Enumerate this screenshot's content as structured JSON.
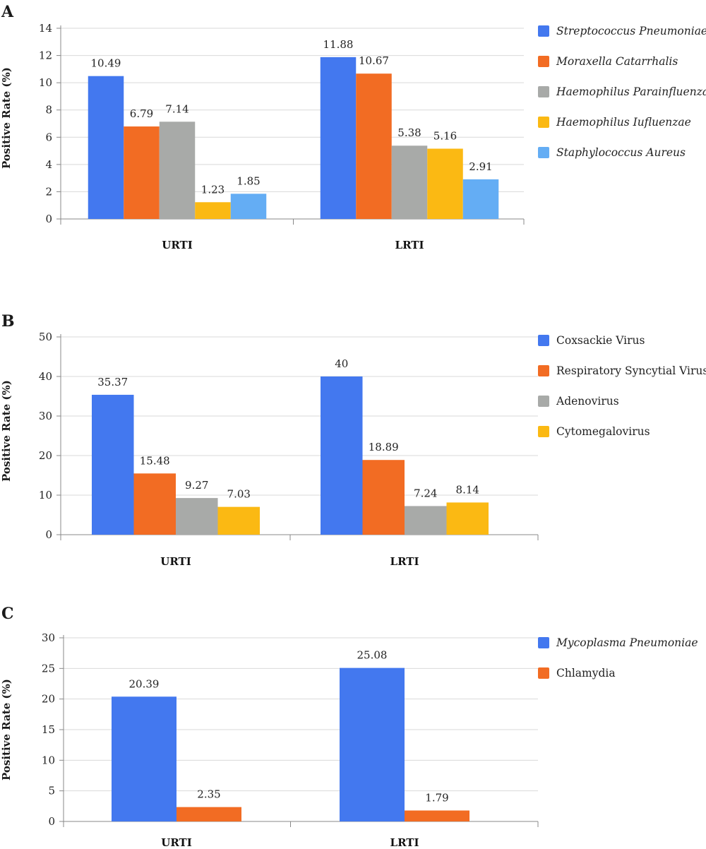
{
  "chart_data": [
    {
      "type": "bar",
      "panel_label": "A",
      "categories": [
        "URTI",
        "LRTI"
      ],
      "ylabel": "Positive Rate (%)",
      "ylim": [
        0,
        14
      ],
      "yticks": [
        0,
        2,
        4,
        6,
        8,
        10,
        12,
        14
      ],
      "grid": true,
      "legend_placement": "right",
      "legend_italic": true,
      "series": [
        {
          "name": "Streptococcus Pneumoniae",
          "color": "#4378ef",
          "values": [
            10.49,
            11.88
          ],
          "labels": [
            "10.49",
            "11.88"
          ]
        },
        {
          "name": "Moraxella Catarrhalis",
          "color": "#f26c23",
          "values": [
            6.79,
            10.67
          ],
          "labels": [
            "6.79",
            "10.67"
          ]
        },
        {
          "name": "Haemophilus Parainfluenzae",
          "color": "#a8aaa8",
          "values": [
            7.14,
            5.38
          ],
          "labels": [
            "7.14",
            "5.38"
          ]
        },
        {
          "name": "Haemophilus Iufluenzae",
          "color": "#fbb913",
          "values": [
            1.23,
            5.16
          ],
          "labels": [
            "1.23",
            "5.16"
          ]
        },
        {
          "name": "Staphylococcus Aureus",
          "color": "#64adf4",
          "values": [
            1.85,
            2.91
          ],
          "labels": [
            "1.85",
            "2.91"
          ]
        }
      ]
    },
    {
      "type": "bar",
      "panel_label": "B",
      "categories": [
        "URTI",
        "LRTI"
      ],
      "ylabel": "Positive Rate (%)",
      "ylim": [
        0,
        50
      ],
      "yticks": [
        0,
        10,
        20,
        30,
        40,
        50
      ],
      "grid": true,
      "legend_placement": "right",
      "legend_italic": false,
      "series": [
        {
          "name": "Coxsackie Virus",
          "color": "#4378ef",
          "values": [
            35.37,
            40
          ],
          "labels": [
            "35.37",
            "40"
          ]
        },
        {
          "name": "Respiratory Syncytial Virus",
          "color": "#f26c23",
          "values": [
            15.48,
            18.89
          ],
          "labels": [
            "15.48",
            "18.89"
          ]
        },
        {
          "name": "Adenovirus",
          "color": "#a8aaa8",
          "values": [
            9.27,
            7.24
          ],
          "labels": [
            "9.27",
            "7.24"
          ]
        },
        {
          "name": "Cytomegalovirus",
          "color": "#fbb913",
          "values": [
            7.03,
            8.14
          ],
          "labels": [
            "7.03",
            "8.14"
          ]
        }
      ]
    },
    {
      "type": "bar",
      "panel_label": "C",
      "categories": [
        "URTI",
        "LRTI"
      ],
      "ylabel": "Positive Rate (%)",
      "ylim": [
        0,
        30
      ],
      "yticks": [
        0,
        5,
        10,
        15,
        20,
        25,
        30
      ],
      "grid": true,
      "legend_placement": "right",
      "legend_italic": false,
      "series": [
        {
          "name": "Mycoplasma Pneumoniae",
          "color": "#4378ef",
          "italic": true,
          "values": [
            20.39,
            25.08
          ],
          "labels": [
            "20.39",
            "25.08"
          ]
        },
        {
          "name": "Chlamydia",
          "color": "#f26c23",
          "italic": false,
          "values": [
            2.35,
            1.79
          ],
          "labels": [
            "2.35",
            "1.79"
          ]
        }
      ]
    }
  ]
}
